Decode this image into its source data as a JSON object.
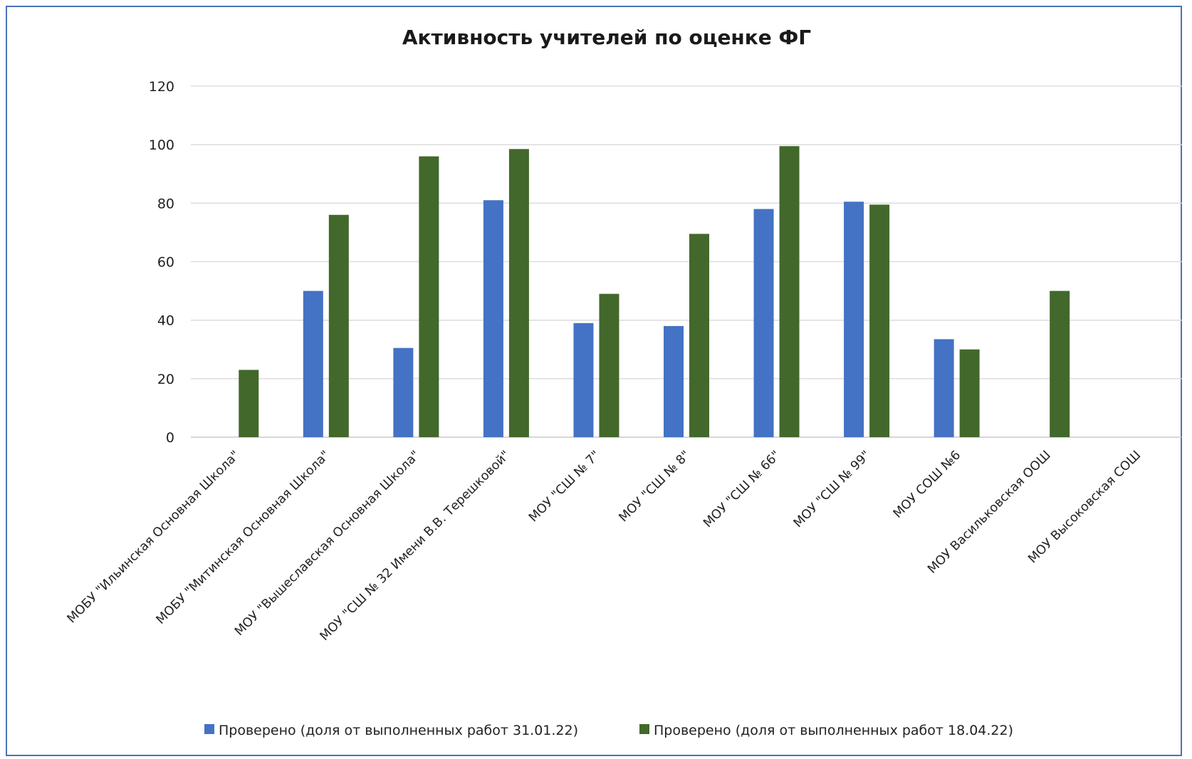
{
  "chart_data": {
    "type": "bar",
    "title": "Активность учителей по оценке ФГ",
    "xlabel": "",
    "ylabel": "",
    "ylim": [
      0,
      120
    ],
    "yticks": [
      0,
      20,
      40,
      60,
      80,
      100,
      120
    ],
    "grid": true,
    "legend_position": "bottom",
    "categories": [
      "МОБУ \"Ильинская Основная Школа\"",
      "МОБУ \"Митинская Основная Школа\"",
      "МОУ \"Вышеславская Основная Школа\"",
      "МОУ \"СШ № 32 Имени В.В. Терешковой\"",
      "МОУ \"СШ № 7\"",
      "МОУ \"СШ № 8\"",
      "МОУ \"СШ № 66\"",
      "МОУ \"СШ № 99\"",
      "МОУ СОШ №6",
      "МОУ Васильковская ООШ",
      "МОУ Высоковская СОШ"
    ],
    "series": [
      {
        "name": "Проверено (доля от выполненных работ 31.01.22)",
        "color": "#4472c4",
        "values": [
          0,
          50,
          30.5,
          81,
          39,
          38,
          78,
          80.5,
          33.5,
          0,
          0
        ]
      },
      {
        "name": "Проверено (доля от выполненных работ 18.04.22)",
        "color": "#43682b",
        "values": [
          23,
          76,
          96,
          98.5,
          49,
          69.5,
          99.5,
          79.5,
          30,
          50,
          0
        ]
      }
    ]
  }
}
